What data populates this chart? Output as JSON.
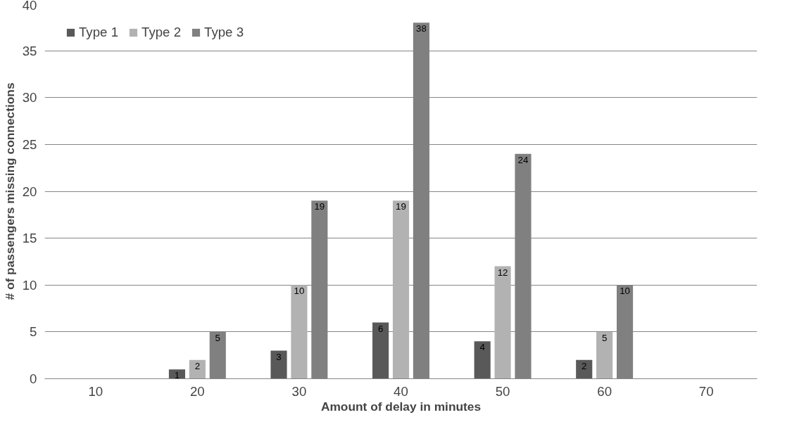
{
  "chart_data": {
    "type": "bar",
    "xlabel": "Amount of delay in minutes",
    "ylabel": "# of passengers missing connections",
    "categories": [
      "10",
      "20",
      "30",
      "40",
      "50",
      "60",
      "70"
    ],
    "series": [
      {
        "name": "Type 1",
        "color": "#595959",
        "values": [
          0,
          1,
          3,
          6,
          4,
          2,
          0
        ],
        "value_labels": [
          null,
          "1",
          "3",
          "6",
          "4",
          "2",
          null
        ]
      },
      {
        "name": "Type 2",
        "color": "#b2b2b2",
        "values": [
          0,
          2,
          10,
          19,
          12,
          5,
          0
        ],
        "value_labels": [
          null,
          "2",
          "10",
          "19",
          "12",
          "5",
          null
        ]
      },
      {
        "name": "Type 3",
        "color": "#808080",
        "values": [
          0,
          5,
          19,
          38,
          24,
          10,
          0
        ],
        "value_labels": [
          null,
          "5",
          "19",
          "38",
          "24",
          "10",
          null
        ]
      }
    ],
    "ylim": [
      0,
      40
    ],
    "yticks": [
      0,
      5,
      10,
      15,
      20,
      25,
      30,
      35,
      40
    ],
    "grid": "y",
    "legend": "top left"
  }
}
